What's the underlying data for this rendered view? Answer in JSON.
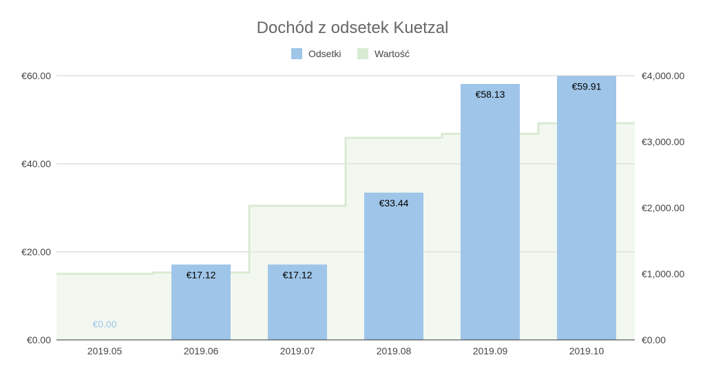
{
  "chart_data": {
    "type": "bar",
    "title": "Dochód z odsetek  Kuetzal",
    "categories": [
      "2019.05",
      "2019.06",
      "2019.07",
      "2019.08",
      "2019.09",
      "2019.10"
    ],
    "series": [
      {
        "name": "Odsetki",
        "type": "bar",
        "axis": "left",
        "color": "#9fc5e8",
        "values": [
          0.0,
          17.12,
          17.12,
          33.44,
          58.13,
          59.91
        ],
        "labels": [
          "€0.00",
          "€17.12",
          "€17.12",
          "€33.44",
          "€58.13",
          "€59.91"
        ]
      },
      {
        "name": "Wartość",
        "type": "stepped-area",
        "axis": "right",
        "color": "#d9ead3",
        "values": [
          1000,
          1020,
          2030,
          3060,
          3120,
          3280
        ]
      }
    ],
    "y_left": {
      "min": 0,
      "max": 60,
      "ticks": [
        0,
        20,
        40,
        60
      ],
      "tick_labels": [
        "€0.00",
        "€20.00",
        "€40.00",
        "€60.00"
      ]
    },
    "y_right": {
      "min": 0,
      "max": 4000,
      "ticks": [
        0,
        1000,
        2000,
        3000,
        4000
      ],
      "tick_labels": [
        "€0.00",
        "€1,000.00",
        "€2,000.00",
        "€3,000.00",
        "€4,000.00"
      ]
    },
    "xlabel": "",
    "ylabel": "",
    "grid": true,
    "legend_position": "top"
  }
}
